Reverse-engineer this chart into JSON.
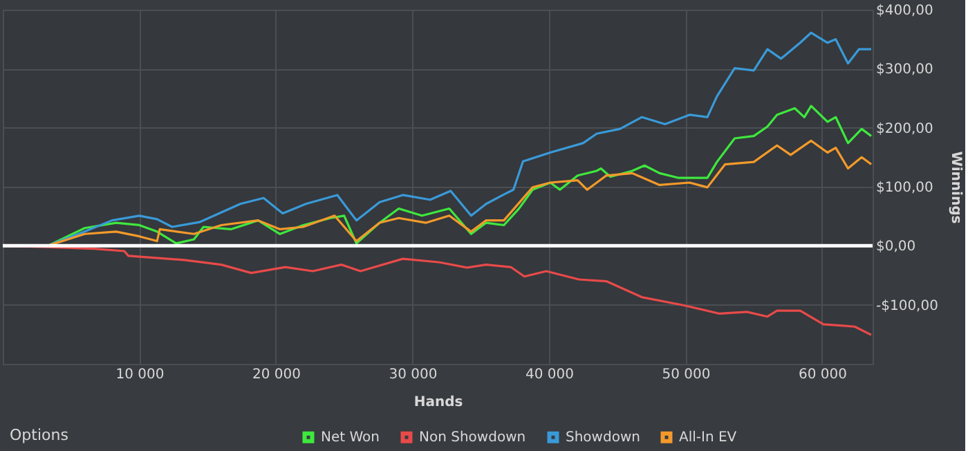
{
  "chart_data": {
    "type": "line",
    "xlabel": "Hands",
    "ylabel": "Winnings",
    "xlim": [
      0,
      63700
    ],
    "ylim": [
      -200,
      400
    ],
    "xticks": [
      {
        "value": 10000,
        "label": "10 000"
      },
      {
        "value": 20000,
        "label": "20 000"
      },
      {
        "value": 30000,
        "label": "30 000"
      },
      {
        "value": 40000,
        "label": "40 000"
      },
      {
        "value": 50000,
        "label": "50 000"
      },
      {
        "value": 60000,
        "label": "60 000"
      }
    ],
    "yticks": [
      {
        "value": -100,
        "label": "-$100,00"
      },
      {
        "value": 0,
        "label": "$0,00"
      },
      {
        "value": 100,
        "label": "$100,00"
      },
      {
        "value": 200,
        "label": "$200,00"
      },
      {
        "value": 300,
        "label": "$300,00"
      },
      {
        "value": 400,
        "label": "$400,00"
      }
    ],
    "grid": true,
    "legend": "bottom",
    "marker": "none",
    "line_style": "solid",
    "ref_lines": [
      {
        "axis": "y",
        "value": 0,
        "label": null,
        "color": "#ffffff"
      }
    ],
    "annotations": [
      "Options"
    ],
    "series": [
      {
        "name": "Net Won",
        "color": "#3ee83e",
        "x": [
          0,
          3300,
          6000,
          8300,
          10000,
          11300,
          12700,
          14000,
          14700,
          16700,
          18700,
          20300,
          22000,
          24000,
          25000,
          25900,
          27600,
          29000,
          30700,
          32700,
          34300,
          35400,
          36700,
          37800,
          38800,
          40100,
          40800,
          42100,
          43500,
          43800,
          44500,
          46100,
          47000,
          48100,
          49500,
          51600,
          52300,
          53600,
          55000,
          56000,
          56700,
          58000,
          58700,
          59200,
          60400,
          61000,
          61900,
          62900,
          63600
        ],
        "values": [
          0,
          0,
          30,
          39,
          35,
          24,
          4,
          11,
          32,
          28,
          43,
          20,
          35,
          47,
          51,
          4,
          39,
          63,
          51,
          63,
          20,
          39,
          35,
          63,
          95,
          107,
          95,
          119,
          127,
          131,
          117,
          127,
          136,
          123,
          115,
          115,
          142,
          182,
          186,
          202,
          222,
          233,
          218,
          237,
          210,
          218,
          174,
          198,
          186
        ]
      },
      {
        "name": "Non Showdown",
        "color": "#e84a4a",
        "x": [
          0,
          3300,
          6700,
          8900,
          9200,
          13300,
          16000,
          18200,
          20700,
          22700,
          24800,
          26200,
          29300,
          32000,
          34000,
          35400,
          37200,
          38200,
          39800,
          42200,
          44200,
          46800,
          49900,
          52500,
          54500,
          56000,
          56700,
          58400,
          60100,
          61400,
          62400,
          63600
        ],
        "values": [
          0,
          -2,
          -5,
          -9,
          -17,
          -24,
          -32,
          -46,
          -36,
          -43,
          -32,
          -43,
          -22,
          -28,
          -37,
          -32,
          -36,
          -52,
          -43,
          -57,
          -60,
          -87,
          -101,
          -115,
          -112,
          -120,
          -110,
          -110,
          -133,
          -135,
          -137,
          -151
        ]
      },
      {
        "name": "Showdown",
        "color": "#3a9ad9",
        "x": [
          0,
          3300,
          6000,
          8000,
          10000,
          11300,
          12400,
          14400,
          17400,
          19100,
          20500,
          22200,
          24500,
          25900,
          27600,
          29300,
          31300,
          32800,
          34300,
          35400,
          36700,
          37400,
          38100,
          40100,
          42500,
          43500,
          45200,
          46800,
          48500,
          50300,
          51600,
          52300,
          53600,
          55000,
          56000,
          57000,
          58400,
          59200,
          60400,
          61000,
          61900,
          62700,
          63600
        ],
        "values": [
          0,
          0,
          24,
          43,
          51,
          45,
          32,
          40,
          71,
          81,
          55,
          71,
          86,
          43,
          74,
          86,
          78,
          93,
          51,
          71,
          87,
          95,
          143,
          158,
          174,
          190,
          198,
          218,
          206,
          222,
          218,
          253,
          301,
          297,
          333,
          317,
          344,
          361,
          344,
          350,
          309,
          333,
          333
        ]
      },
      {
        "name": "All-In EV",
        "color": "#f39a2b",
        "x": [
          0,
          3300,
          6000,
          8300,
          10000,
          11300,
          11500,
          14000,
          16000,
          18700,
          20300,
          22000,
          24300,
          25900,
          27600,
          29000,
          31000,
          32700,
          34300,
          35400,
          36700,
          38800,
          40100,
          42100,
          42800,
          44200,
          46100,
          48100,
          50300,
          51600,
          52900,
          55000,
          56700,
          57700,
          59200,
          60400,
          61000,
          61900,
          62900,
          63600
        ],
        "values": [
          0,
          0,
          20,
          24,
          16,
          8,
          28,
          20,
          35,
          43,
          28,
          32,
          51,
          8,
          39,
          47,
          39,
          51,
          24,
          43,
          43,
          99,
          107,
          111,
          95,
          119,
          123,
          103,
          107,
          99,
          138,
          142,
          170,
          154,
          178,
          158,
          166,
          131,
          150,
          138
        ]
      }
    ]
  }
}
